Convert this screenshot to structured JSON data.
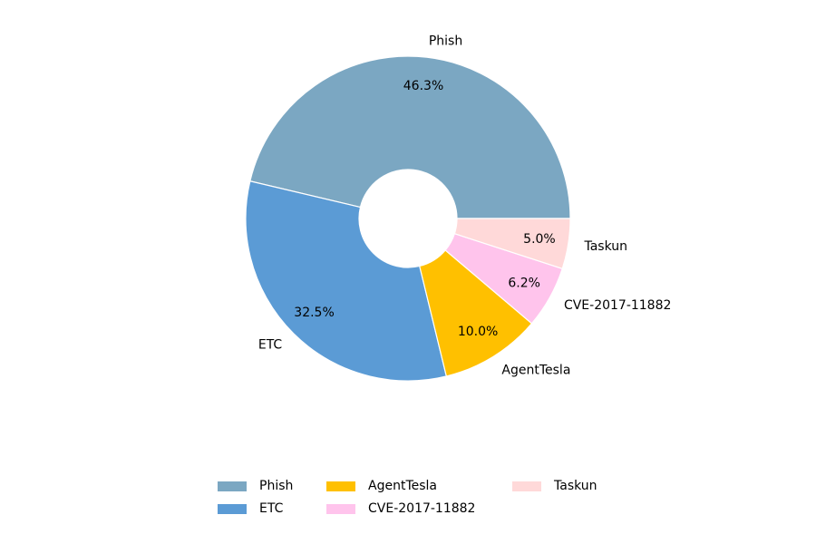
{
  "chart_data": {
    "type": "donut",
    "categories": [
      "Phish",
      "ETC",
      "AgentTesla",
      "CVE-2017-11882",
      "Taskun"
    ],
    "values": [
      46.3,
      32.5,
      10.0,
      6.2,
      5.0
    ],
    "value_labels": [
      "46.3%",
      "32.5%",
      "10.0%",
      "6.2%",
      "5.0%"
    ],
    "colors": [
      "#7ba7c2",
      "#5b9bd5",
      "#ffc000",
      "#ffc4ec",
      "#ffd9d9"
    ],
    "legend": "bottom"
  }
}
